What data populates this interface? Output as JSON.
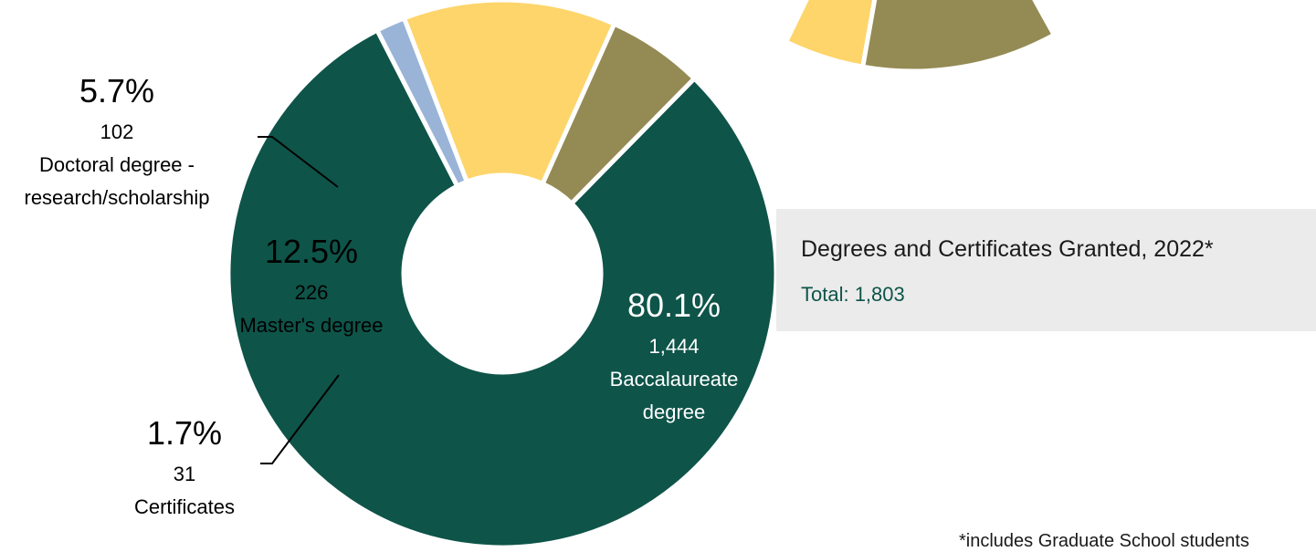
{
  "chart_data": [
    {
      "type": "pie",
      "title": "Degrees and Certificates Granted, 2022*",
      "subtitle": "Total: 1,803",
      "footnote": "*includes Graduate School students",
      "slices": [
        {
          "label": "Baccalaureate degree",
          "value": 1444,
          "percent_label": "80.1%",
          "count_label": "1,444",
          "color": "#0e5449"
        },
        {
          "label": "Certificates",
          "value": 31,
          "percent_label": "1.7%",
          "count_label": "31",
          "color": "#9ab4d8"
        },
        {
          "label": "Master's degree",
          "value": 226,
          "percent_label": "12.5%",
          "count_label": "226",
          "color": "#fdd56b"
        },
        {
          "label": "Doctoral degree - research/scholarship",
          "value": 102,
          "percent_label": "5.7%",
          "count_label": "102",
          "color": "#948a54"
        }
      ]
    },
    {
      "type": "pie",
      "partial": true,
      "visible_slices": [
        {
          "color": "#fdd56b"
        },
        {
          "color": "#948a54"
        }
      ]
    }
  ],
  "labels": {
    "baccalaureate": {
      "pct": "80.1%",
      "count": "1,444",
      "name_line1": "Baccalaureate",
      "name_line2": "degree"
    },
    "certificates": {
      "pct": "1.7%",
      "count": "31",
      "name_line1": "Certificates"
    },
    "masters": {
      "pct": "12.5%",
      "count": "226",
      "name_line1": "Master's degree"
    },
    "doctoral": {
      "pct": "5.7%",
      "count": "102",
      "name_line1": "Doctoral degree -",
      "name_line2": "research/scholarship"
    }
  }
}
